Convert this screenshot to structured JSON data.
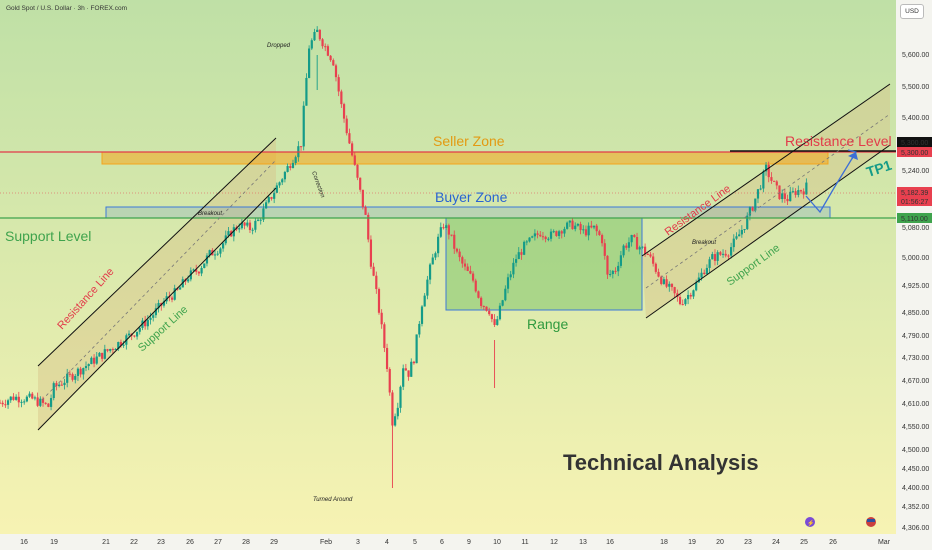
{
  "header": {
    "title": "Gold Spot / U.S. Dollar · 3h · FOREX.com",
    "currency_button": "USD"
  },
  "colors": {
    "bg_top": "#bfe0a6",
    "bg_bottom": "#f7f3b3",
    "bull": "#149b88",
    "bear": "#e8404f",
    "seller_zone": "#f4a51c",
    "buyer_zone": "#3c78d8",
    "range_fill": "#7fc46b",
    "support_green": "#3fa34d",
    "resistance_red": "#e23b4a",
    "tp_teal": "#149b88"
  },
  "chart_data": {
    "type": "candlestick",
    "symbol": "Gold Spot / U.S. Dollar",
    "timeframe": "3h",
    "x_ticks": [
      "16",
      "19",
      "21",
      "22",
      "23",
      "26",
      "27",
      "28",
      "29",
      "Feb",
      "3",
      "4",
      "5",
      "6",
      "9",
      "10",
      "11",
      "12",
      "13",
      "16",
      "18",
      "19",
      "20",
      "23",
      "24",
      "25",
      "26",
      "Mar"
    ],
    "y_ticks": [
      "5,600.00",
      "5,500.00",
      "5,400.00",
      "5,240.00",
      "5,080.00",
      "5,000.00",
      "4,925.00",
      "4,850.00",
      "4,790.00",
      "4,730.00",
      "4,670.00",
      "4,610.00",
      "4,550.00",
      "4,500.00",
      "4,450.00",
      "4,400.00",
      "4,352.00",
      "4,306.00"
    ],
    "price_tags": {
      "resistance": "5,300.00",
      "resistance_dup": "5,300.00",
      "current_price": "5,182.39",
      "countdown": "01:56:27",
      "support": "5,110.00"
    },
    "zones": {
      "seller_zone": {
        "label": "Seller Zone",
        "top": 5300,
        "bottom": 5262
      },
      "buyer_zone": {
        "label": "Buyer Zone",
        "top": 5140,
        "bottom": 5110
      },
      "range": {
        "label": "Range",
        "top": 5110,
        "bottom": 4870
      }
    },
    "levels": {
      "support_level": {
        "label": "Support Level",
        "price": 5110
      },
      "resistance_level": {
        "label": "Resistance Level",
        "price": 5300
      }
    },
    "annotations": {
      "dropped": "Dropped",
      "correction": "Correction",
      "turned_around": "Turned Around",
      "breakout_left": "Breakout",
      "breakout_right": "Breakout",
      "resistance_line_left": "Resistance Line",
      "support_line_left": "Support Line",
      "resistance_line_right": "Resistance Line",
      "support_line_right": "Support Line",
      "tp1": "TP1",
      "watermark": "Technical Analysis"
    },
    "close_path": [
      [
        0,
        4600
      ],
      [
        5,
        4615
      ],
      [
        12,
        4610
      ],
      [
        18,
        4590
      ],
      [
        20,
        4640
      ],
      [
        28,
        4680
      ],
      [
        36,
        4720
      ],
      [
        44,
        4760
      ],
      [
        50,
        4790
      ],
      [
        56,
        4830
      ],
      [
        62,
        4880
      ],
      [
        66,
        4900
      ],
      [
        70,
        4940
      ],
      [
        74,
        4960
      ],
      [
        78,
        5000
      ],
      [
        82,
        5020
      ],
      [
        86,
        5060
      ],
      [
        89,
        5080
      ],
      [
        93,
        5070
      ],
      [
        96,
        5090
      ],
      [
        99,
        5130
      ],
      [
        102,
        5170
      ],
      [
        106,
        5220
      ],
      [
        109,
        5260
      ],
      [
        112,
        5300
      ],
      [
        115,
        5560
      ],
      [
        118,
        5600
      ],
      [
        121,
        5560
      ],
      [
        124,
        5520
      ],
      [
        127,
        5400
      ],
      [
        130,
        5300
      ],
      [
        133,
        5200
      ],
      [
        136,
        5100
      ],
      [
        138,
        4980
      ],
      [
        141,
        4850
      ],
      [
        144,
        4700
      ],
      [
        146,
        4550
      ],
      [
        148,
        4600
      ],
      [
        150,
        4700
      ],
      [
        152,
        4680
      ],
      [
        154,
        4720
      ],
      [
        157,
        4870
      ],
      [
        160,
        4960
      ],
      [
        163,
        5040
      ],
      [
        165,
        5080
      ],
      [
        167,
        5060
      ],
      [
        170,
        5000
      ],
      [
        173,
        4960
      ],
      [
        176,
        4930
      ],
      [
        179,
        4870
      ],
      [
        182,
        4850
      ],
      [
        184,
        4800
      ],
      [
        186,
        4850
      ],
      [
        189,
        4930
      ],
      [
        192,
        4990
      ],
      [
        195,
        5020
      ],
      [
        198,
        5040
      ],
      [
        201,
        5060
      ],
      [
        205,
        5050
      ],
      [
        209,
        5070
      ],
      [
        213,
        5080
      ],
      [
        217,
        5060
      ],
      [
        221,
        5070
      ],
      [
        224,
        5040
      ],
      [
        226,
        4940
      ],
      [
        229,
        4960
      ],
      [
        232,
        5020
      ],
      [
        235,
        5040
      ],
      [
        238,
        5020
      ],
      [
        241,
        5000
      ],
      [
        244,
        4960
      ],
      [
        247,
        4920
      ],
      [
        250,
        4900
      ],
      [
        253,
        4870
      ],
      [
        256,
        4890
      ],
      [
        259,
        4920
      ],
      [
        262,
        4960
      ],
      [
        265,
        4990
      ],
      [
        268,
        5000
      ],
      [
        271,
        5010
      ],
      [
        274,
        5040
      ],
      [
        277,
        5080
      ],
      [
        280,
        5130
      ],
      [
        283,
        5190
      ],
      [
        285,
        5230
      ],
      [
        287,
        5200
      ],
      [
        290,
        5160
      ],
      [
        293,
        5150
      ],
      [
        296,
        5170
      ],
      [
        299,
        5175
      ],
      [
        300,
        5182
      ]
    ]
  }
}
